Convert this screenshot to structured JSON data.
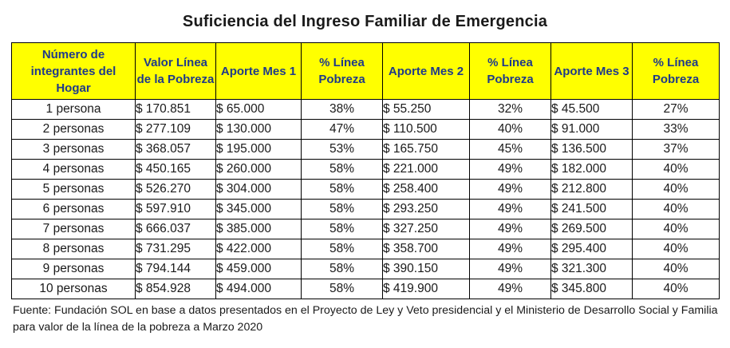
{
  "title": "Suficiencia del Ingreso Familiar de Emergencia",
  "table": {
    "headers": [
      "Número de integrantes del Hogar",
      "Valor Línea de la Pobreza",
      "Aporte Mes 1",
      "% Línea Pobreza",
      "Aporte Mes 2",
      "% Línea Pobreza",
      "Aporte Mes 3",
      "% Línea Pobreza"
    ],
    "rows": [
      [
        "1 persona",
        "$ 170.851",
        "$ 65.000",
        "38%",
        "$ 55.250",
        "32%",
        "$ 45.500",
        "27%"
      ],
      [
        "2 personas",
        "$ 277.109",
        "$ 130.000",
        "47%",
        "$ 110.500",
        "40%",
        "$ 91.000",
        "33%"
      ],
      [
        "3 personas",
        "$ 368.057",
        "$ 195.000",
        "53%",
        "$ 165.750",
        "45%",
        "$ 136.500",
        "37%"
      ],
      [
        "4 personas",
        "$ 450.165",
        "$ 260.000",
        "58%",
        "$ 221.000",
        "49%",
        "$ 182.000",
        "40%"
      ],
      [
        "5 personas",
        "$ 526.270",
        "$ 304.000",
        "58%",
        "$ 258.400",
        "49%",
        "$ 212.800",
        "40%"
      ],
      [
        "6 personas",
        "$ 597.910",
        "$ 345.000",
        "58%",
        "$ 293.250",
        "49%",
        "$ 241.500",
        "40%"
      ],
      [
        "7 personas",
        "$ 666.037",
        "$ 385.000",
        "58%",
        "$ 327.250",
        "49%",
        "$ 269.500",
        "40%"
      ],
      [
        "8 personas",
        "$ 731.295",
        "$ 422.000",
        "58%",
        "$ 358.700",
        "49%",
        "$ 295.400",
        "40%"
      ],
      [
        "9 personas",
        "$ 794.144",
        "$ 459.000",
        "58%",
        "$ 390.150",
        "49%",
        "$ 321.300",
        "40%"
      ],
      [
        "10 personas",
        "$ 854.928",
        "$ 494.000",
        "58%",
        "$ 419.900",
        "49%",
        "$ 345.800",
        "40%"
      ]
    ]
  },
  "footnote": "Fuente: Fundación SOL en base a datos presentados en el Proyecto de Ley y Veto presidencial y el Ministerio de Desarrollo Social y Familia para valor de la línea de la pobreza a Marzo 2020",
  "colors": {
    "header_background": "#ffff00",
    "header_text": "#1f3a8a"
  }
}
